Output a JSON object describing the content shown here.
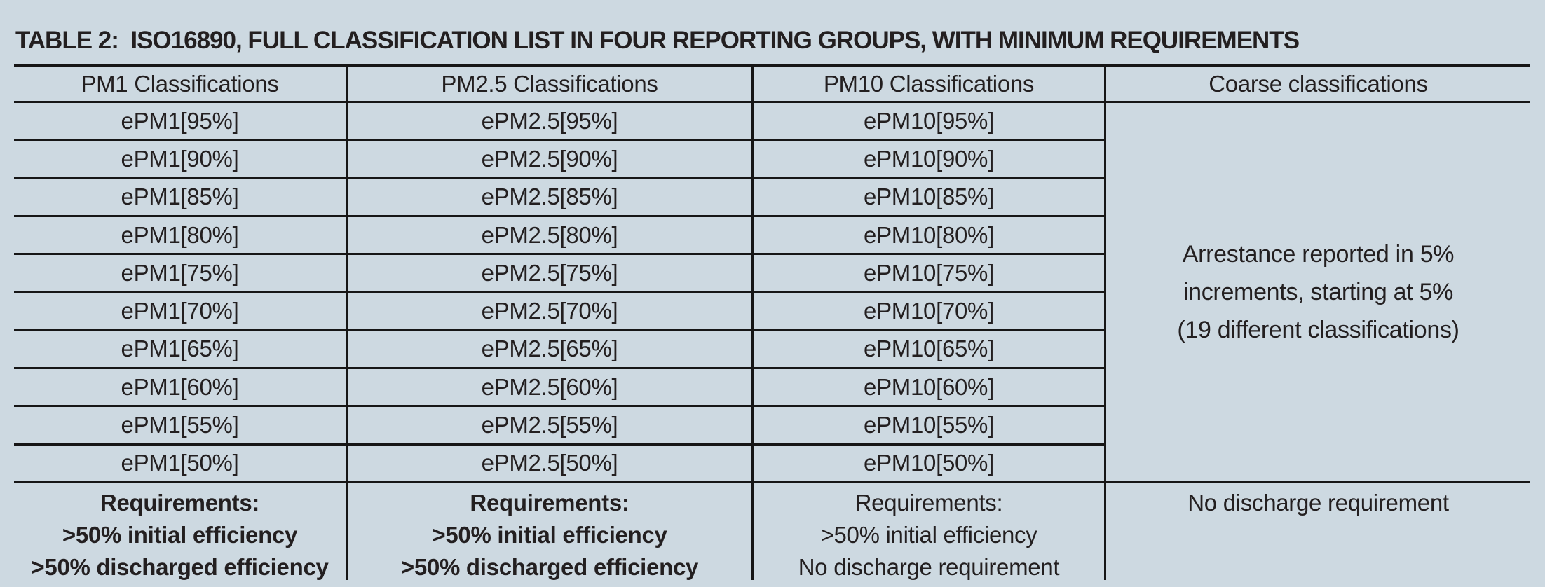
{
  "title": "TABLE 2:  ISO16890, FULL CLASSIFICATION LIST IN FOUR REPORTING GROUPS, WITH MINIMUM REQUIREMENTS",
  "colors": {
    "background": "#cdd9e1",
    "text": "#231f20",
    "line": "#161616"
  },
  "table": {
    "headers": [
      "PM1 Classifications",
      "PM2.5 Classifications",
      "PM10 Classifications",
      "Coarse classifications"
    ],
    "pm1": [
      "ePM1[95%]",
      "ePM1[90%]",
      "ePM1[85%]",
      "ePM1[80%]",
      "ePM1[75%]",
      "ePM1[70%]",
      "ePM1[65%]",
      "ePM1[60%]",
      "ePM1[55%]",
      "ePM1[50%]"
    ],
    "pm25": [
      "ePM2.5[95%]",
      "ePM2.5[90%]",
      "ePM2.5[85%]",
      "ePM2.5[80%]",
      "ePM2.5[75%]",
      "ePM2.5[70%]",
      "ePM2.5[65%]",
      "ePM2.5[60%]",
      "ePM2.5[55%]",
      "ePM2.5[50%]"
    ],
    "pm10": [
      "ePM10[95%]",
      "ePM10[90%]",
      "ePM10[85%]",
      "ePM10[80%]",
      "ePM10[75%]",
      "ePM10[70%]",
      "ePM10[65%]",
      "ePM10[60%]",
      "ePM10[55%]",
      "ePM10[50%]"
    ],
    "coarse_note": [
      "Arrestance reported in 5%",
      "increments, starting at 5%",
      "(19 different classifications)"
    ],
    "requirements": {
      "pm1": [
        "Requirements:",
        ">50% initial efficiency",
        ">50% discharged efficiency"
      ],
      "pm25": [
        "Requirements:",
        ">50% initial efficiency",
        ">50% discharged efficiency"
      ],
      "pm10": [
        "Requirements:",
        ">50% initial efficiency",
        "No discharge requirement"
      ],
      "coarse": [
        "No discharge requirement"
      ]
    }
  }
}
